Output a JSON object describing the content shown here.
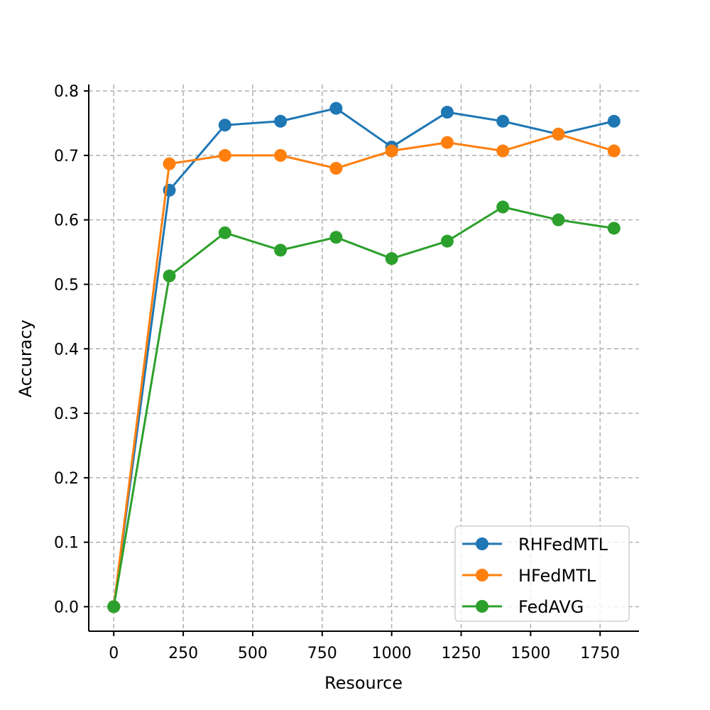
{
  "chart_data": {
    "type": "line",
    "x": [
      0,
      200,
      400,
      600,
      800,
      1000,
      1200,
      1400,
      1600,
      1800
    ],
    "series": [
      {
        "name": "RHFedMTL",
        "color": "#1f77b4",
        "values": [
          0.0,
          0.646,
          0.747,
          0.753,
          0.773,
          0.713,
          0.767,
          0.753,
          0.733,
          0.753
        ]
      },
      {
        "name": "HFedMTL",
        "color": "#ff7f0e",
        "values": [
          0.0,
          0.687,
          0.7,
          0.7,
          0.68,
          0.707,
          0.72,
          0.707,
          0.733,
          0.707
        ]
      },
      {
        "name": "FedAVG",
        "color": "#2ca02c",
        "values": [
          0.0,
          0.513,
          0.58,
          0.553,
          0.573,
          0.54,
          0.567,
          0.62,
          0.6,
          0.587
        ]
      }
    ],
    "xlabel": "Resource",
    "ylabel": "Accuracy",
    "xlim": [
      -90,
      1890
    ],
    "ylim": [
      -0.038,
      0.81
    ],
    "xticks": [
      0,
      250,
      500,
      750,
      1000,
      1250,
      1500,
      1750
    ],
    "yticks": [
      0.0,
      0.1,
      0.2,
      0.3,
      0.4,
      0.5,
      0.6,
      0.7,
      0.8
    ],
    "xtick_labels": [
      "0",
      "250",
      "500",
      "750",
      "1000",
      "1250",
      "1500",
      "1750"
    ],
    "ytick_labels": [
      "0.0",
      "0.1",
      "0.2",
      "0.3",
      "0.4",
      "0.5",
      "0.6",
      "0.7",
      "0.8"
    ],
    "grid": true,
    "legend_position": "lower-right",
    "marker": "circle"
  }
}
